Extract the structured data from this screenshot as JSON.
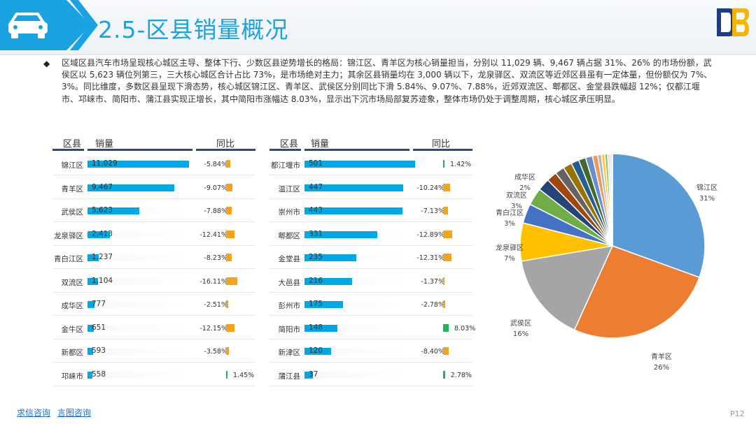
{
  "header": {
    "title": "2.5-区县销量概况"
  },
  "summary": {
    "bullet": "◆",
    "text": "区域区县汽车市场呈现核心城区主导、整体下行、少数区县逆势增长的格局：锦江区、青羊区为核心销量担当，分别以 11,029 辆、9,467 辆占据 31%、26% 的市场份额，武侯区以 5,623 辆位列第三，三大核心城区合计占比 73%，是市场绝对主力；其余区县销量均在 3,000 辆以下，龙泉驿区、双流区等近郊区县虽有一定体量，但份额仅为 7%、3%。同比维度，多数区县呈现下滑态势，核心城区锦江区、青羊区、武侯区分别同比下滑 5.84%、9.07%、7.88%，近郊双流区、郫都区、金堂县跌幅超 12%；仅都江堰市、邛崃市、简阳市、蒲江县实现正增长，其中简阳市涨幅达 8.03%，显示出下沉市场局部复苏迹象，整体市场仍处于调整周期，核心城区承压明显。"
  },
  "table_left": {
    "headers": {
      "district": "区县",
      "volume": "销量",
      "yoy": "同比"
    },
    "rows": [
      {
        "name": "锦江区",
        "volume": "11,029",
        "value": 11029,
        "yoy": "-5.84%",
        "yoy_value": -5.84
      },
      {
        "name": "青羊区",
        "volume": "9,467",
        "value": 9467,
        "yoy": "-9.07%",
        "yoy_value": -9.07
      },
      {
        "name": "武侯区",
        "volume": "5,623",
        "value": 5623,
        "yoy": "-7.88%",
        "yoy_value": -7.88
      },
      {
        "name": "龙泉驿区",
        "volume": "2,413",
        "value": 2413,
        "yoy": "-12.41%",
        "yoy_value": -12.41
      },
      {
        "name": "青白江区",
        "volume": "1,237",
        "value": 1237,
        "yoy": "-8.23%",
        "yoy_value": -8.23
      },
      {
        "name": "双流区",
        "volume": "1,104",
        "value": 1104,
        "yoy": "-16.11%",
        "yoy_value": -16.11
      },
      {
        "name": "成华区",
        "volume": "777",
        "value": 777,
        "yoy": "-2.51%",
        "yoy_value": -2.51
      },
      {
        "name": "金牛区",
        "volume": "651",
        "value": 651,
        "yoy": "-12.15%",
        "yoy_value": -12.15
      },
      {
        "name": "新都区",
        "volume": "593",
        "value": 593,
        "yoy": "-3.58%",
        "yoy_value": -3.58
      },
      {
        "name": "邛崃市",
        "volume": "558",
        "value": 558,
        "yoy": "1.45%",
        "yoy_value": 1.45
      }
    ]
  },
  "table_right": {
    "headers": {
      "district": "区县",
      "volume": "销量",
      "yoy": "同比"
    },
    "rows": [
      {
        "name": "都江堰市",
        "volume": "501",
        "value": 501,
        "yoy": "1.42%",
        "yoy_value": 1.42
      },
      {
        "name": "温江区",
        "volume": "447",
        "value": 447,
        "yoy": "-10.24%",
        "yoy_value": -10.24
      },
      {
        "name": "崇州市",
        "volume": "443",
        "value": 443,
        "yoy": "-7.13%",
        "yoy_value": -7.13
      },
      {
        "name": "郫都区",
        "volume": "331",
        "value": 331,
        "yoy": "-12.89%",
        "yoy_value": -12.89
      },
      {
        "name": "金堂县",
        "volume": "235",
        "value": 235,
        "yoy": "-12.31%",
        "yoy_value": -12.31
      },
      {
        "name": "大邑县",
        "volume": "216",
        "value": 216,
        "yoy": "-1.37%",
        "yoy_value": -1.37
      },
      {
        "name": "彭州市",
        "volume": "175",
        "value": 175,
        "yoy": "-2.78%",
        "yoy_value": -2.78
      },
      {
        "name": "简阳市",
        "volume": "148",
        "value": 148,
        "yoy": "8.03%",
        "yoy_value": 8.03
      },
      {
        "name": "新津区",
        "volume": "120",
        "value": 120,
        "yoy": "-8.40%",
        "yoy_value": -8.4
      },
      {
        "name": "蒲江县",
        "volume": "37",
        "value": 37,
        "yoy": "2.78%",
        "yoy_value": 2.78
      }
    ]
  },
  "colors": {
    "title": "#1aa3e0",
    "volume_bar": "#00a9e6",
    "yoy_negative": "#f7a21b",
    "yoy_positive": "#1fb45a"
  },
  "chart_data": {
    "type": "pie",
    "slices": [
      {
        "name": "锦江区",
        "value": 11029,
        "label": "31%",
        "color": "#5b9bd5"
      },
      {
        "name": "青羊区",
        "value": 9467,
        "label": "26%",
        "color": "#ed7d31"
      },
      {
        "name": "武侯区",
        "value": 5623,
        "label": "16%",
        "color": "#a5a5a5"
      },
      {
        "name": "龙泉驿区",
        "value": 2413,
        "label": "7%",
        "color": "#ffc000"
      },
      {
        "name": "青白江区",
        "value": 1237,
        "label": "3%",
        "color": "#4472c4"
      },
      {
        "name": "双流区",
        "value": 1104,
        "label": "3%",
        "color": "#70ad47"
      },
      {
        "name": "成华区",
        "value": 777,
        "label": "2%",
        "color": "#264478"
      },
      {
        "name": "金牛区",
        "value": 651,
        "color": "#9e480e"
      },
      {
        "name": "新都区",
        "value": 593,
        "color": "#636363"
      },
      {
        "name": "邛崃市",
        "value": 558,
        "color": "#997300"
      },
      {
        "name": "都江堰市",
        "value": 501,
        "color": "#255e91"
      },
      {
        "name": "温江区",
        "value": 447,
        "color": "#43682b"
      },
      {
        "name": "崇州市",
        "value": 443,
        "color": "#698ed0"
      },
      {
        "name": "郫都区",
        "value": 331,
        "color": "#f1975a"
      },
      {
        "name": "金堂县",
        "value": 235,
        "color": "#b7b7b7"
      },
      {
        "name": "大邑县",
        "value": 216,
        "color": "#ffcd33"
      },
      {
        "name": "彭州市",
        "value": 175,
        "color": "#8cc168"
      },
      {
        "name": "简阳市",
        "value": 148,
        "color": "#c9e0f2"
      },
      {
        "name": "新津区",
        "value": 120,
        "color": "#f8cbad"
      },
      {
        "name": "蒲江县",
        "value": 37,
        "color": "#d9d9d9"
      }
    ]
  },
  "footer": {
    "link1": "求信咨询",
    "link2": "言图咨询",
    "page": "P12"
  }
}
